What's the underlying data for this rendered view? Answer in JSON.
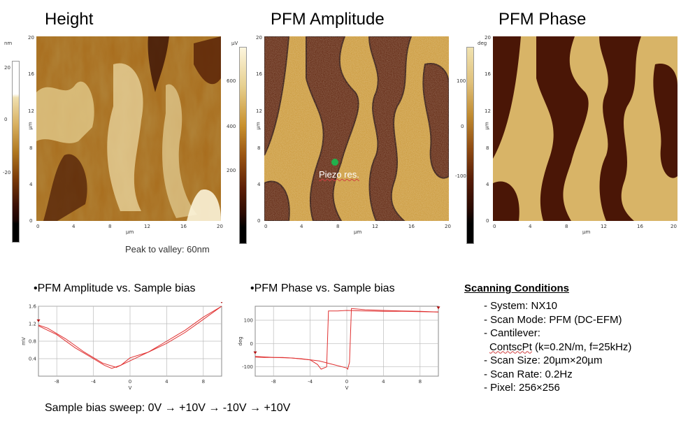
{
  "panels": {
    "height": {
      "title": "Height",
      "unit": "nm",
      "cbar_ticks": [
        "20",
        "0",
        "-20"
      ],
      "axis_ticks": [
        "0",
        "4",
        "8",
        "12",
        "16",
        "20"
      ],
      "axis_label": "µm",
      "note": "Peak to valley: 60nm"
    },
    "amplitude": {
      "title": "PFM Amplitude",
      "unit": "µV",
      "cbar_ticks": [
        "600",
        "400",
        "200"
      ],
      "axis_ticks": [
        "0",
        "4",
        "8",
        "12",
        "16",
        "20"
      ],
      "axis_label": "µm",
      "annotation": "Piezo res."
    },
    "phase": {
      "title": "PFM Phase",
      "unit": "deg",
      "cbar_ticks": [
        "100",
        "0",
        "-100"
      ],
      "axis_ticks": [
        "0",
        "4",
        "8",
        "12",
        "16",
        "20"
      ],
      "axis_label": "µm"
    }
  },
  "plots": {
    "amp_caption": "•PFM Amplitude vs. Sample bias",
    "phase_caption": "•PFM Phase vs. Sample bias",
    "sweep_note": "Sample bias sweep: 0V → +10V → -10V → +10V"
  },
  "conditions": {
    "title": "Scanning Conditions",
    "system": "- System:  NX10",
    "scan_mode": "- Scan Mode:  PFM (DC-EFM)",
    "cantilever": "- Cantilever:",
    "cantilever_name": "ContscPt",
    "cantilever_spec": " (k=0.2N/m,  f=25kHz)",
    "scan_size": "- Scan Size:  20µm×20µm",
    "scan_rate": "- Scan Rate:  0.2Hz",
    "pixel": "- Pixel: 256×256"
  },
  "colors": {
    "line": "#e03030",
    "dot": "#22b14c",
    "afm_dark": "#3a0f05",
    "afm_light": "#e8d9a8"
  },
  "chart_data": [
    {
      "type": "line",
      "xlabel": "V",
      "ylabel": "mV",
      "xlim": [
        -10,
        10
      ],
      "ylim": [
        0,
        1.6
      ],
      "x_ticks": [
        -8,
        -4,
        0,
        4,
        8
      ],
      "y_ticks": [
        0.4,
        0.8,
        1.2,
        1.6
      ],
      "grid": true,
      "series": [
        {
          "x": [
            -10,
            -8,
            -6,
            -4,
            -2.8,
            -2,
            -1,
            0,
            2,
            4,
            6,
            8,
            10
          ],
          "values": [
            1.15,
            0.95,
            0.65,
            0.4,
            0.25,
            0.18,
            0.25,
            0.42,
            0.55,
            0.75,
            1.0,
            1.3,
            1.6
          ]
        },
        {
          "x": [
            10,
            8,
            6,
            4,
            2,
            0,
            -1.5,
            -3,
            -5,
            -7,
            -9,
            -10
          ],
          "values": [
            1.6,
            1.35,
            1.05,
            0.8,
            0.55,
            0.35,
            0.2,
            0.3,
            0.55,
            0.85,
            1.1,
            1.17
          ]
        }
      ]
    },
    {
      "type": "line",
      "xlabel": "V",
      "ylabel": "deg",
      "xlim": [
        -10,
        10
      ],
      "ylim": [
        -140,
        160
      ],
      "x_ticks": [
        -8,
        -4,
        0,
        4,
        8
      ],
      "y_ticks": [
        -100,
        0,
        100
      ],
      "grid": true,
      "series": [
        {
          "x": [
            -10,
            -8,
            -6,
            -4,
            -3.2,
            -2.8,
            -2.2,
            -2,
            -1,
            0,
            2,
            4,
            6,
            8,
            10
          ],
          "values": [
            -55,
            -60,
            -62,
            -70,
            -90,
            -110,
            -100,
            140,
            140,
            142,
            140,
            138,
            138,
            137,
            135
          ]
        },
        {
          "x": [
            10,
            8,
            6,
            4,
            2,
            0.5,
            0.3,
            0.1,
            0,
            -1,
            -3,
            -5,
            -7,
            -9,
            -10
          ],
          "values": [
            135,
            138,
            140,
            142,
            145,
            150,
            -80,
            -110,
            -105,
            -95,
            -75,
            -65,
            -60,
            -60,
            -58
          ]
        }
      ]
    }
  ]
}
